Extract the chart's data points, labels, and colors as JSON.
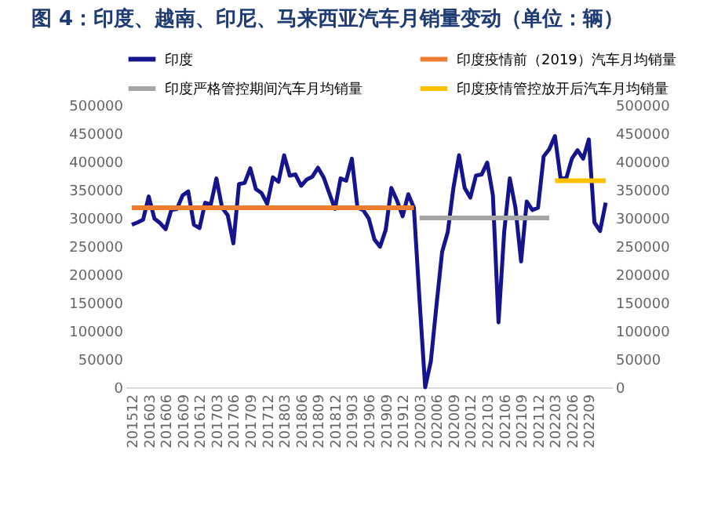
{
  "chart_data": {
    "type": "line",
    "title": "图 4：印度、越南、印尼、马来西亚汽车月销量变动（单位：辆）",
    "categories": [
      "201512",
      null,
      null,
      "201603",
      null,
      null,
      "201606",
      null,
      null,
      "201609",
      null,
      null,
      "201612",
      null,
      null,
      "201703",
      null,
      null,
      "201706",
      null,
      null,
      "201709",
      null,
      null,
      "201712",
      null,
      null,
      "201803",
      null,
      null,
      "201806",
      null,
      null,
      "201809",
      null,
      null,
      "201812",
      null,
      null,
      "201903",
      null,
      null,
      "201906",
      null,
      null,
      "201909",
      null,
      null,
      "201912",
      null,
      null,
      "202003",
      null,
      null,
      "202006",
      null,
      null,
      "202009",
      null,
      null,
      "202012",
      null,
      null,
      "202103",
      null,
      null,
      "202106",
      null,
      null,
      "202109",
      null,
      null,
      "202112",
      null,
      null,
      "202203",
      null,
      null,
      "202206",
      null,
      null,
      "202209",
      null,
      null,
      null
    ],
    "series": [
      {
        "name": "印度",
        "color": "#14148c",
        "values": [
          288000,
          292000,
          297000,
          338000,
          299000,
          291000,
          280000,
          314000,
          316000,
          340000,
          347000,
          288000,
          282000,
          327000,
          324000,
          370000,
          318000,
          305000,
          255000,
          360000,
          362000,
          388000,
          351000,
          344000,
          325000,
          372000,
          364000,
          411000,
          375000,
          377000,
          357000,
          368000,
          373000,
          389000,
          372000,
          344000,
          316000,
          370000,
          366000,
          405000,
          318000,
          314000,
          299000,
          262000,
          249000,
          279000,
          353000,
          331000,
          303000,
          342000,
          318000,
          154000,
          0,
          46000,
          145000,
          240000,
          275000,
          353000,
          411000,
          353000,
          336000,
          375000,
          377000,
          398000,
          340000,
          115000,
          275000,
          370000,
          318000,
          223000,
          329000,
          314000,
          318000,
          409000,
          422000,
          445000,
          370000,
          370000,
          405000,
          420000,
          405000,
          439000,
          292000,
          277000,
          327000
        ]
      },
      {
        "name": "印度疫情前（2019）汽车月均销量",
        "color": "#ed7d31",
        "axis": "y2",
        "values": [
          318000,
          318000,
          318000,
          318000,
          318000,
          318000,
          318000,
          318000,
          318000,
          318000,
          318000,
          318000,
          318000,
          318000,
          318000,
          318000,
          318000,
          318000,
          318000,
          318000,
          318000,
          318000,
          318000,
          318000,
          318000,
          318000,
          318000,
          318000,
          318000,
          318000,
          318000,
          318000,
          318000,
          318000,
          318000,
          318000,
          318000,
          318000,
          318000,
          318000,
          318000,
          318000,
          318000,
          318000,
          318000,
          318000,
          318000,
          318000,
          318000,
          318000,
          318000,
          null,
          null,
          null,
          null,
          null,
          null,
          null,
          null,
          null,
          null,
          null,
          null,
          null,
          null,
          null,
          null,
          null,
          null,
          null,
          null,
          null,
          null,
          null,
          null,
          null,
          null,
          null,
          null,
          null,
          null,
          null,
          null,
          null,
          null
        ]
      },
      {
        "name": "印度严格管控期间汽车月均销量",
        "color": "#a5a5a5",
        "axis": "y2",
        "values": [
          null,
          null,
          null,
          null,
          null,
          null,
          null,
          null,
          null,
          null,
          null,
          null,
          null,
          null,
          null,
          null,
          null,
          null,
          null,
          null,
          null,
          null,
          null,
          null,
          null,
          null,
          null,
          null,
          null,
          null,
          null,
          null,
          null,
          null,
          null,
          null,
          null,
          null,
          null,
          null,
          null,
          null,
          null,
          null,
          null,
          null,
          null,
          null,
          null,
          null,
          null,
          300000,
          300000,
          300000,
          300000,
          300000,
          300000,
          300000,
          300000,
          300000,
          300000,
          300000,
          300000,
          300000,
          300000,
          300000,
          300000,
          300000,
          300000,
          300000,
          300000,
          300000,
          300000,
          300000,
          300000,
          null,
          null,
          null,
          null,
          null,
          null,
          null,
          null,
          null,
          null
        ]
      },
      {
        "name": "印度疫情管控放开后汽车月均销量",
        "color": "#ffc000",
        "axis": "y2",
        "values": [
          null,
          null,
          null,
          null,
          null,
          null,
          null,
          null,
          null,
          null,
          null,
          null,
          null,
          null,
          null,
          null,
          null,
          null,
          null,
          null,
          null,
          null,
          null,
          null,
          null,
          null,
          null,
          null,
          null,
          null,
          null,
          null,
          null,
          null,
          null,
          null,
          null,
          null,
          null,
          null,
          null,
          null,
          null,
          null,
          null,
          null,
          null,
          null,
          null,
          null,
          null,
          null,
          null,
          null,
          null,
          null,
          null,
          null,
          null,
          null,
          null,
          null,
          null,
          null,
          null,
          null,
          null,
          null,
          null,
          null,
          null,
          null,
          null,
          null,
          null,
          366000,
          366000,
          366000,
          366000,
          366000,
          366000,
          366000,
          366000,
          366000,
          366000
        ]
      }
    ],
    "ylim": [
      0,
      500000
    ],
    "yticks": [
      0,
      50000,
      100000,
      150000,
      200000,
      250000,
      300000,
      350000,
      400000,
      450000,
      500000
    ],
    "y2lim": [
      0,
      500000
    ],
    "y2ticks": [
      0,
      50000,
      100000,
      150000,
      200000,
      250000,
      300000,
      350000,
      400000,
      450000,
      500000
    ],
    "legend": "top",
    "grid": false
  }
}
